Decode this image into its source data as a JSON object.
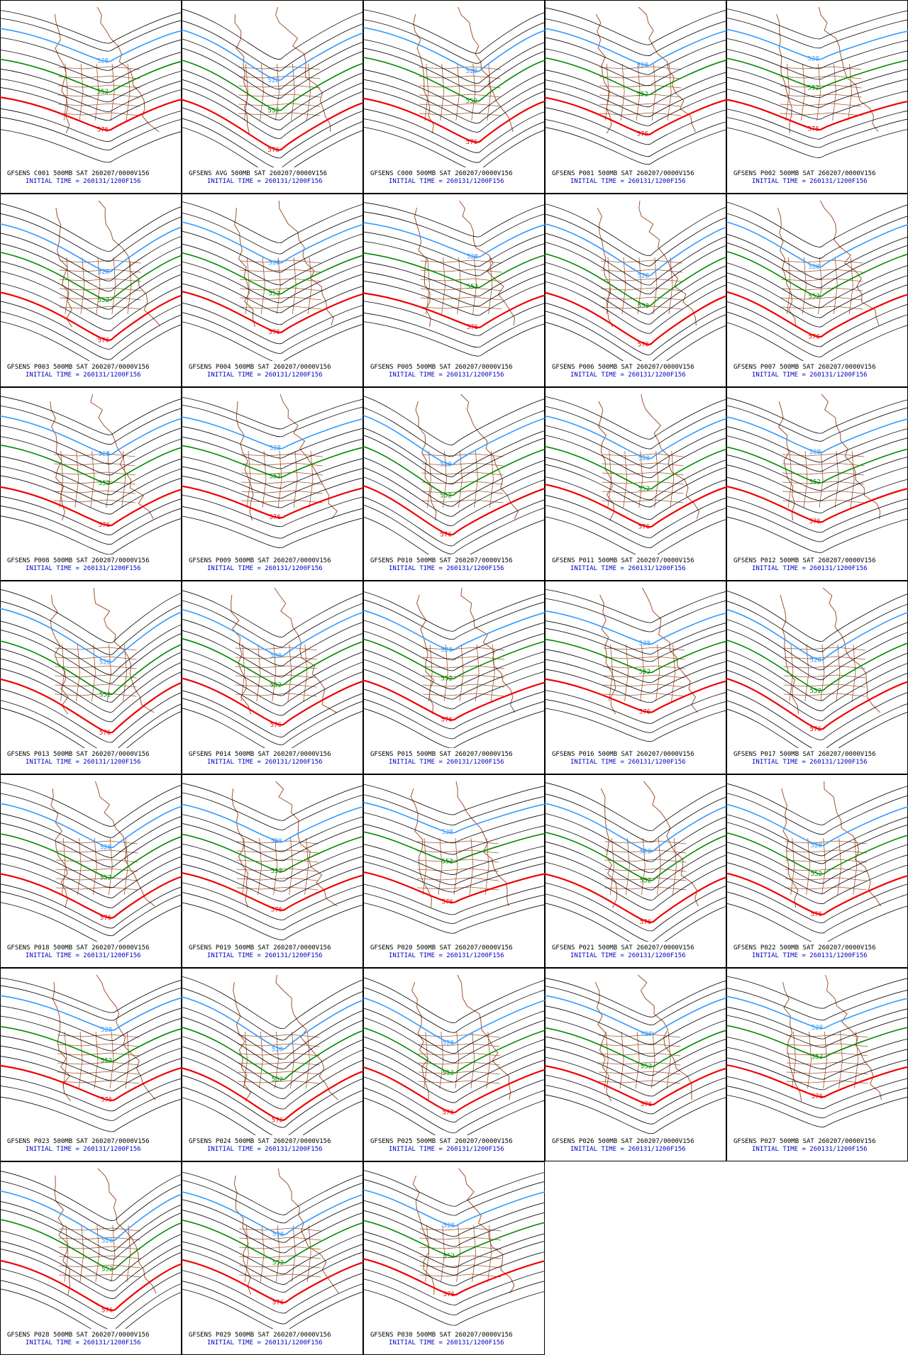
{
  "panels": [
    {
      "run": "GFSENS C001 500MB SAT 260207/0000V156",
      "init": "INITIAL TIME = 260131/1200F156"
    },
    {
      "run": "GFSENS AVG 500MB SAT 260207/0000V156",
      "init": "INITIAL TIME = 260131/1200F156"
    },
    {
      "run": "GFSENS C000 500MB SAT 260207/0000V156",
      "init": "INITIAL TIME = 260131/1200F156"
    },
    {
      "run": "GFSENS P001 500MB SAT 260207/0000V156",
      "init": "INITIAL TIME = 260131/1200F156"
    },
    {
      "run": "GFSENS P002 500MB SAT 260207/0000V156",
      "init": "INITIAL TIME = 260131/1200F156"
    },
    {
      "run": "GFSENS P003 500MB SAT 260207/0000V156",
      "init": "INITIAL TIME = 260131/1200F156"
    },
    {
      "run": "GFSENS P004 500MB SAT 260207/0000V156",
      "init": "INITIAL TIME = 260131/1200F156"
    },
    {
      "run": "GFSENS P005 500MB SAT 260207/0000V156",
      "init": "INITIAL TIME = 260131/1200F156"
    },
    {
      "run": "GFSENS P006 500MB SAT 260207/0000V156",
      "init": "INITIAL TIME = 260131/1200F156"
    },
    {
      "run": "GFSENS P007 500MB SAT 260207/0000V156",
      "init": "INITIAL TIME = 260131/1200F156"
    },
    {
      "run": "GFSENS P008 500MB SAT 260207/0000V156",
      "init": "INITIAL TIME = 260131/1200F156"
    },
    {
      "run": "GFSENS P009 500MB SAT 260207/0000V156",
      "init": "INITIAL TIME = 260131/1200F156"
    },
    {
      "run": "GFSENS P010 500MB SAT 260207/0000V156",
      "init": "INITIAL TIME = 260131/1200F156"
    },
    {
      "run": "GFSENS P011 500MB SAT 260207/0000V156",
      "init": "INITIAL TIME = 260131/1200F156"
    },
    {
      "run": "GFSENS P012 500MB SAT 260207/0000V156",
      "init": "INITIAL TIME = 260131/1200F156"
    },
    {
      "run": "GFSENS P013 500MB SAT 260207/0000V156",
      "init": "INITIAL TIME = 260131/1200F156"
    },
    {
      "run": "GFSENS P014 500MB SAT 260207/0000V156",
      "init": "INITIAL TIME = 260131/1200F156"
    },
    {
      "run": "GFSENS P015 500MB SAT 260207/0000V156",
      "init": "INITIAL TIME = 260131/1200F156"
    },
    {
      "run": "GFSENS P016 500MB SAT 260207/0000V156",
      "init": "INITIAL TIME = 260131/1200F156"
    },
    {
      "run": "GFSENS P017 500MB SAT 260207/0000V156",
      "init": "INITIAL TIME = 260131/1200F156"
    },
    {
      "run": "GFSENS P018 500MB SAT 260207/0000V156",
      "init": "INITIAL TIME = 260131/1200F156"
    },
    {
      "run": "GFSENS P019 500MB SAT 260207/0000V156",
      "init": "INITIAL TIME = 260131/1200F156"
    },
    {
      "run": "GFSENS P020 500MB SAT 260207/0000V156",
      "init": "INITIAL TIME = 260131/1200F156"
    },
    {
      "run": "GFSENS P021 500MB SAT 260207/0000V156",
      "init": "INITIAL TIME = 260131/1200F156"
    },
    {
      "run": "GFSENS P022 500MB SAT 260207/0000V156",
      "init": "INITIAL TIME = 260131/1200F156"
    },
    {
      "run": "GFSENS P023 500MB SAT 260207/0000V156",
      "init": "INITIAL TIME = 260131/1200F156"
    },
    {
      "run": "GFSENS P024 500MB SAT 260207/0000V156",
      "init": "INITIAL TIME = 260131/1200F156"
    },
    {
      "run": "GFSENS P025 500MB SAT 260207/0000V156",
      "init": "INITIAL TIME = 260131/1200F156"
    },
    {
      "run": "GFSENS P026 500MB SAT 260207/0000V156",
      "init": "INITIAL TIME = 260131/1200F156"
    },
    {
      "run": "GFSENS P027 500MB SAT 260207/0000V156",
      "init": "INITIAL TIME = 260131/1200F156"
    },
    {
      "run": "GFSENS P028 500MB SAT 260207/0000V156",
      "init": "INITIAL TIME = 260131/1200F156"
    },
    {
      "run": "GFSENS P029 500MB SAT 260207/0000V156",
      "init": "INITIAL TIME = 260131/1200F156"
    },
    {
      "run": "GFSENS P030 500MB SAT 260207/0000V156",
      "init": "INITIAL TIME = 260131/1200F156"
    }
  ],
  "contour_labels": [
    {
      "label": "528",
      "color": "#3399ff"
    },
    {
      "label": "552",
      "color": "#008800"
    },
    {
      "label": "576",
      "color": "#ee0000"
    }
  ]
}
